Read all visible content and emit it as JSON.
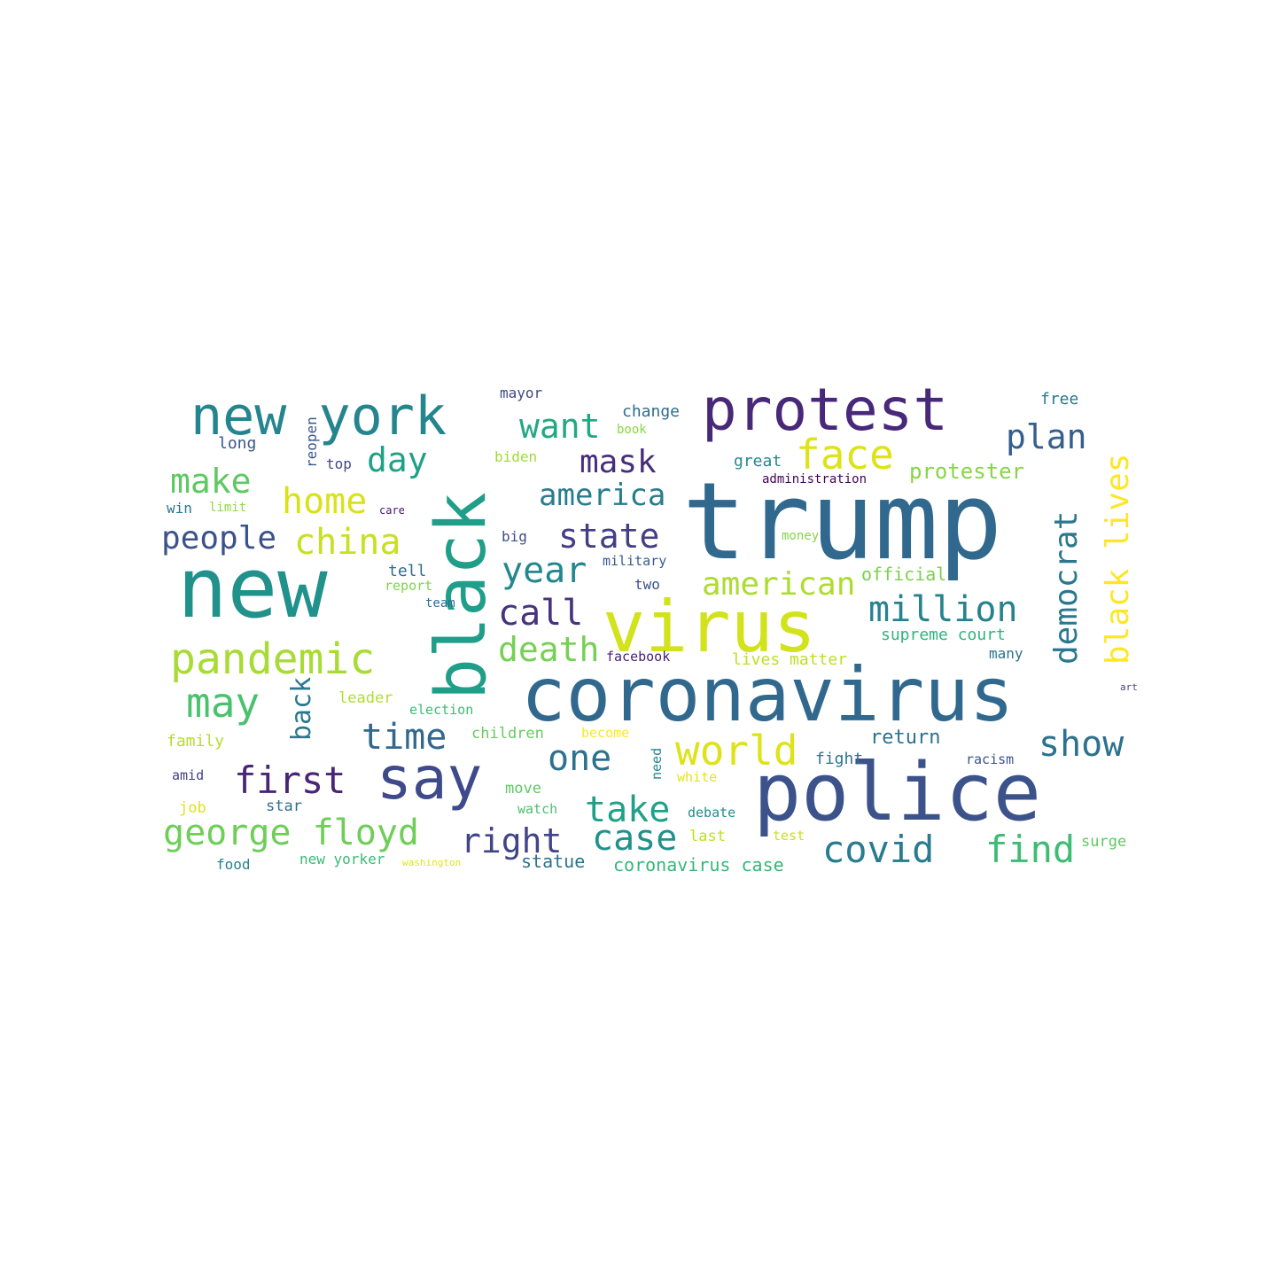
{
  "words": [
    {
      "text": "trump",
      "color": "#31688e"
    },
    {
      "text": "coronavirus",
      "color": "#31688e"
    },
    {
      "text": "police",
      "color": "#3b528b"
    },
    {
      "text": "new",
      "color": "#21918c"
    },
    {
      "text": "virus",
      "color": "#d2e21b"
    },
    {
      "text": "protest",
      "color": "#482878"
    },
    {
      "text": "black",
      "color": "#1f9e89"
    },
    {
      "text": "say",
      "color": "#3e4a89"
    },
    {
      "text": "new york",
      "color": "#25858e"
    },
    {
      "text": "pandemic",
      "color": "#a8db34"
    },
    {
      "text": "george floyd",
      "color": "#6ece58"
    },
    {
      "text": "face",
      "color": "#dde318"
    },
    {
      "text": "million",
      "color": "#26828e"
    },
    {
      "text": "world",
      "color": "#dde318"
    },
    {
      "text": "covid",
      "color": "#287c8e"
    },
    {
      "text": "find",
      "color": "#3dbc74"
    },
    {
      "text": "show",
      "color": "#2c728e"
    },
    {
      "text": "first",
      "color": "#482575"
    },
    {
      "text": "case",
      "color": "#21918c"
    },
    {
      "text": "take",
      "color": "#1fa187"
    },
    {
      "text": "may",
      "color": "#4ac16d"
    },
    {
      "text": "time",
      "color": "#31688e"
    },
    {
      "text": "one",
      "color": "#2c728e"
    },
    {
      "text": "right",
      "color": "#414487"
    },
    {
      "text": "plan",
      "color": "#355f8d"
    },
    {
      "text": "black lives",
      "color": "#fde725"
    },
    {
      "text": "democrat",
      "color": "#2a788e"
    },
    {
      "text": "american",
      "color": "#addc30"
    },
    {
      "text": "call",
      "color": "#46327e"
    },
    {
      "text": "death",
      "color": "#75d054"
    },
    {
      "text": "year",
      "color": "#23888e"
    },
    {
      "text": "state",
      "color": "#433e85"
    },
    {
      "text": "america",
      "color": "#287c8e"
    },
    {
      "text": "mask",
      "color": "#472d7b"
    },
    {
      "text": "want",
      "color": "#22a884"
    },
    {
      "text": "day",
      "color": "#1fa187"
    },
    {
      "text": "make",
      "color": "#5ec962"
    },
    {
      "text": "home",
      "color": "#d8e219"
    },
    {
      "text": "china",
      "color": "#c8e020"
    },
    {
      "text": "people",
      "color": "#3b528b"
    },
    {
      "text": "back",
      "color": "#2a788e"
    },
    {
      "text": "protester",
      "color": "#86d549"
    },
    {
      "text": "supreme court",
      "color": "#2fb47c"
    },
    {
      "text": "official",
      "color": "#7ad151"
    },
    {
      "text": "return",
      "color": "#2c728e"
    },
    {
      "text": "lives matter",
      "color": "#bddf26"
    },
    {
      "text": "coronavirus case",
      "color": "#35b779"
    },
    {
      "text": "statue",
      "color": "#2c728e"
    },
    {
      "text": "new yorker",
      "color": "#3aba76"
    },
    {
      "text": "change",
      "color": "#2f6c8e"
    },
    {
      "text": "mayor",
      "color": "#3f4788"
    },
    {
      "text": "free",
      "color": "#2a788e"
    },
    {
      "text": "reopen",
      "color": "#38598c"
    },
    {
      "text": "long",
      "color": "#39568c"
    },
    {
      "text": "top",
      "color": "#3f4889"
    },
    {
      "text": "win",
      "color": "#2a788e"
    },
    {
      "text": "limit",
      "color": "#90d743"
    },
    {
      "text": "biden",
      "color": "#9fda3a"
    },
    {
      "text": "book",
      "color": "#8bd646"
    },
    {
      "text": "great",
      "color": "#23898e"
    },
    {
      "text": "administration",
      "color": "#440154"
    },
    {
      "text": "big",
      "color": "#3e4c8a"
    },
    {
      "text": "military",
      "color": "#355e8d"
    },
    {
      "text": "tell",
      "color": "#2e6e8e"
    },
    {
      "text": "report",
      "color": "#81d34d"
    },
    {
      "text": "two",
      "color": "#3b518b"
    },
    {
      "text": "team",
      "color": "#2e6f8e"
    },
    {
      "text": "care",
      "color": "#481668"
    },
    {
      "text": "facebook",
      "color": "#481f70"
    },
    {
      "text": "leader",
      "color": "#b0dd2f"
    },
    {
      "text": "election",
      "color": "#3dbc74"
    },
    {
      "text": "children",
      "color": "#65cb5e"
    },
    {
      "text": "become",
      "color": "#fde725"
    },
    {
      "text": "family",
      "color": "#b5de2b"
    },
    {
      "text": "amid",
      "color": "#423f85"
    },
    {
      "text": "job",
      "color": "#dfe318"
    },
    {
      "text": "star",
      "color": "#2e6f8e"
    },
    {
      "text": "move",
      "color": "#5ec962"
    },
    {
      "text": "watch",
      "color": "#4ac16d"
    },
    {
      "text": "need",
      "color": "#24868e"
    },
    {
      "text": "white",
      "color": "#e5e419"
    },
    {
      "text": "fight",
      "color": "#2b748e"
    },
    {
      "text": "racism",
      "color": "#3b528b"
    },
    {
      "text": "many",
      "color": "#2c728e"
    },
    {
      "text": "debate",
      "color": "#218e8d"
    },
    {
      "text": "last",
      "color": "#bddf26"
    },
    {
      "text": "test",
      "color": "#c8e020"
    },
    {
      "text": "surge",
      "color": "#5ec962"
    },
    {
      "text": "food",
      "color": "#26828e"
    },
    {
      "text": "washington",
      "color": "#e2e418"
    },
    {
      "text": "money",
      "color": "#86d549"
    },
    {
      "text": "art",
      "color": "#404588"
    }
  ]
}
